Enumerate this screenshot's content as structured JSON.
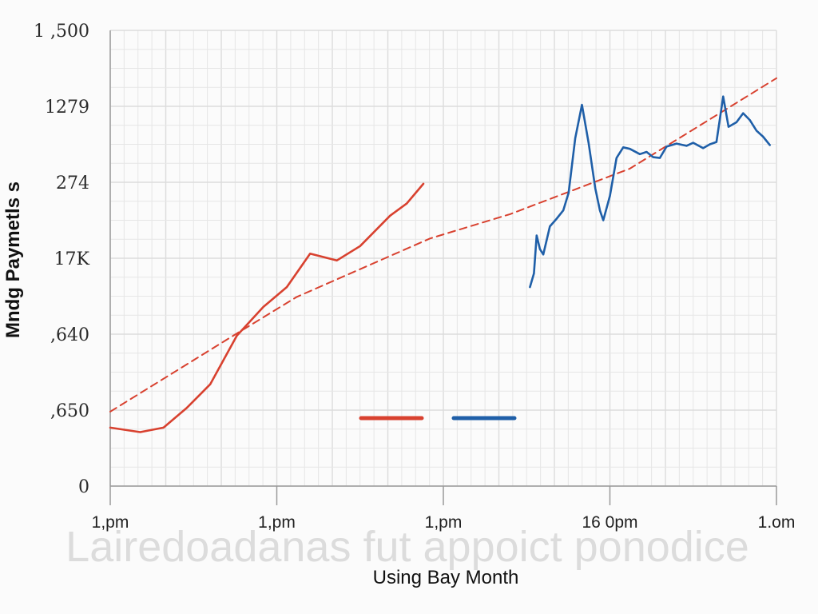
{
  "chart_data": {
    "type": "line",
    "title": "",
    "xlabel": "Using Bay Month",
    "ylabel": "Mndg Paymetls s",
    "watermark_text": "Lairedoadanas fut appoict ponodice",
    "y_tick_labels": [
      "0",
      ",650",
      ",640",
      "17K",
      "274",
      "1279",
      "1 ,500"
    ],
    "x_tick_labels": [
      "1,pm",
      "1,pm",
      "1,pm",
      "16 0pm",
      "1.om"
    ],
    "x_range": [
      0,
      100
    ],
    "y_range": [
      0,
      6
    ],
    "grid": true,
    "legend": {
      "placement": "bottom-center",
      "show_names": false
    },
    "series": [
      {
        "color": "#d8412f",
        "style": "solid",
        "points": [
          [
            0,
            0.77
          ],
          [
            4.5,
            0.71
          ],
          [
            8,
            0.77
          ],
          [
            11.5,
            1.03
          ],
          [
            15,
            1.34
          ],
          [
            19,
            1.98
          ],
          [
            23,
            2.36
          ],
          [
            26.5,
            2.62
          ],
          [
            30,
            3.06
          ],
          [
            34,
            2.97
          ],
          [
            37.5,
            3.16
          ],
          [
            42,
            3.56
          ],
          [
            44.5,
            3.72
          ],
          [
            47,
            3.98
          ]
        ]
      },
      {
        "color": "#d8412f",
        "style": "dashed",
        "points": [
          [
            0,
            0.98
          ],
          [
            19,
            2.01
          ],
          [
            28,
            2.49
          ],
          [
            48,
            3.26
          ],
          [
            60,
            3.58
          ],
          [
            78,
            4.18
          ],
          [
            100,
            5.37
          ]
        ]
      },
      {
        "color": "#1f5fa8",
        "style": "solid",
        "points": [
          [
            63,
            2.62
          ],
          [
            63.6,
            2.8
          ],
          [
            64,
            3.3
          ],
          [
            64.5,
            3.12
          ],
          [
            65,
            3.05
          ],
          [
            66,
            3.42
          ],
          [
            67,
            3.52
          ],
          [
            68,
            3.63
          ],
          [
            68.8,
            3.86
          ],
          [
            69.8,
            4.58
          ],
          [
            70.8,
            5.02
          ],
          [
            71.8,
            4.52
          ],
          [
            72.8,
            3.92
          ],
          [
            73.5,
            3.63
          ],
          [
            74,
            3.5
          ],
          [
            75,
            3.82
          ],
          [
            76,
            4.32
          ],
          [
            77,
            4.46
          ],
          [
            78,
            4.44
          ],
          [
            79.5,
            4.37
          ],
          [
            80.5,
            4.4
          ],
          [
            81.5,
            4.33
          ],
          [
            82.5,
            4.32
          ],
          [
            83.5,
            4.47
          ],
          [
            85,
            4.51
          ],
          [
            86.5,
            4.48
          ],
          [
            87.5,
            4.52
          ],
          [
            89,
            4.45
          ],
          [
            90,
            4.5
          ],
          [
            91,
            4.53
          ],
          [
            92,
            5.13
          ],
          [
            92.8,
            4.73
          ],
          [
            94,
            4.79
          ],
          [
            95,
            4.91
          ],
          [
            96,
            4.82
          ],
          [
            97,
            4.68
          ],
          [
            98,
            4.6
          ],
          [
            99,
            4.49
          ]
        ]
      }
    ],
    "legend_swatches": [
      {
        "color": "#d8412f"
      },
      {
        "color": "#1f5fa8"
      }
    ]
  }
}
